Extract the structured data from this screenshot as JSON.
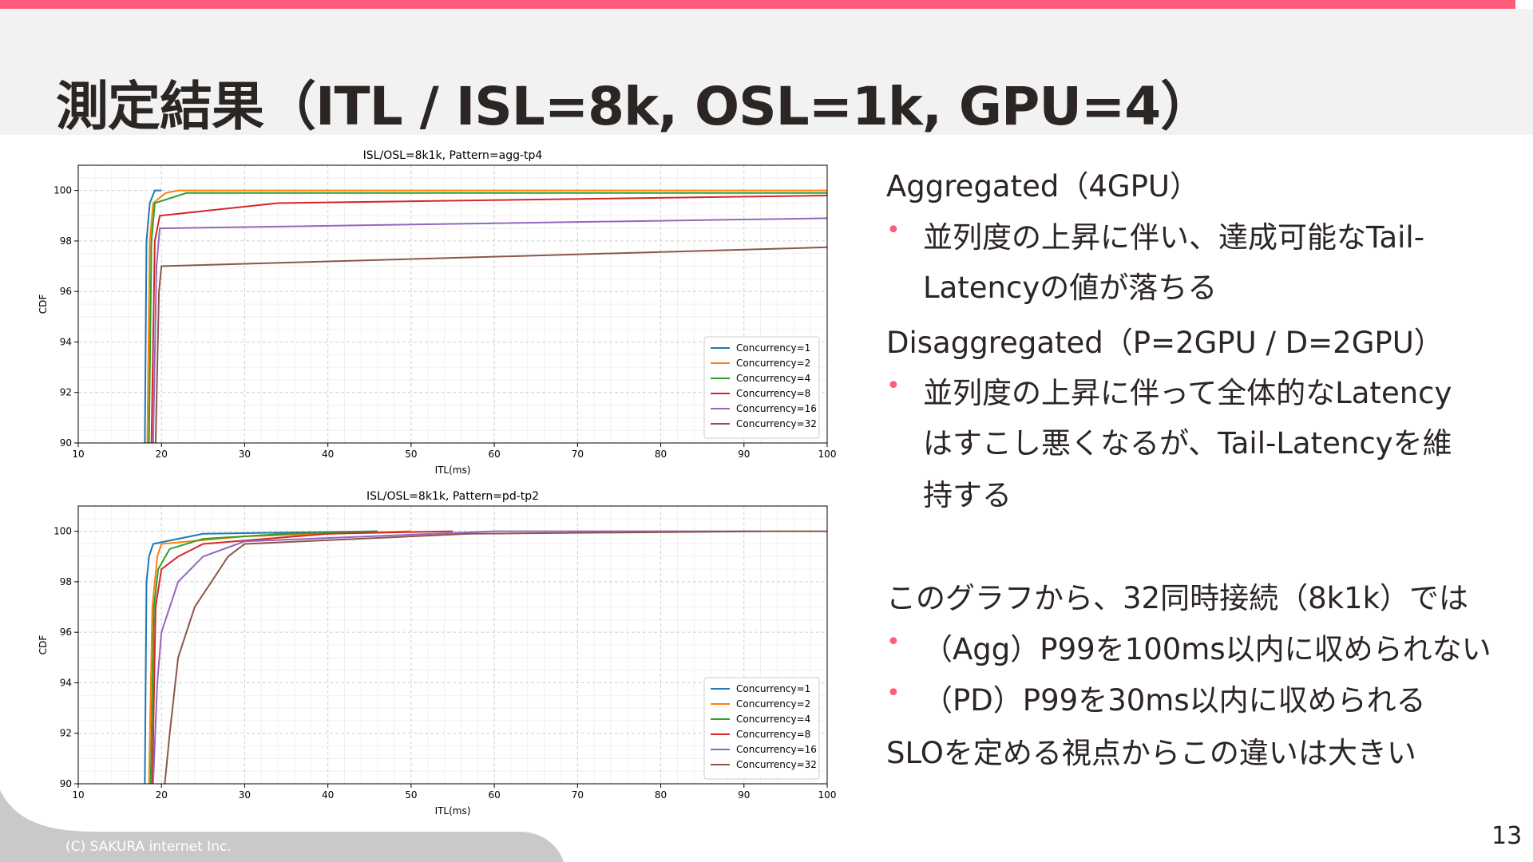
{
  "slide": {
    "title": "測定結果（ITL / ISL=8k, OSL=1k, GPU=4）",
    "page_number": "13",
    "footer": "(C) SAKURA internet Inc.",
    "accent_color": "#ff5b7a"
  },
  "text": {
    "heading_agg": "Aggregated（4GPU）",
    "bullet_agg_1a": "並列度の上昇に伴い、達成可能なTail-",
    "bullet_agg_1b": "Latencyの値が落ちる",
    "heading_disagg": "Disaggregated（P=2GPU / D=2GPU）",
    "bullet_disagg_1a": "並列度の上昇に伴って全体的なLatency",
    "bullet_disagg_1b": "はすこし悪くなるが、Tail-Latencyを維",
    "bullet_disagg_1c": "持する",
    "conclusion_intro": "このグラフから、32同時接続（8k1k）では",
    "bullet_concl_1": "（Agg）P99を100ms以内に収められない",
    "bullet_concl_2": "（PD）P99を30ms以内に収められる",
    "conclusion_final": "SLOを定める視点からこの違いは大きい",
    "bullet_glyph": "•"
  },
  "chart_data": [
    {
      "type": "line",
      "title": "ISL/OSL=8k1k, Pattern=agg-tp4",
      "xlabel": "ITL(ms)",
      "ylabel": "CDF",
      "xlim": [
        10,
        100
      ],
      "ylim": [
        90,
        101
      ],
      "xticks": [
        10,
        20,
        30,
        40,
        50,
        60,
        70,
        80,
        90,
        100
      ],
      "yticks": [
        90,
        92,
        94,
        96,
        98,
        100
      ],
      "grid": true,
      "legend_position": "lower-right",
      "series": [
        {
          "name": "Concurrency=1",
          "color": "#1f77b4",
          "points": [
            [
              18.0,
              90
            ],
            [
              18.2,
              98
            ],
            [
              18.6,
              99.5
            ],
            [
              19.2,
              100
            ],
            [
              20,
              100
            ]
          ]
        },
        {
          "name": "Concurrency=2",
          "color": "#ff7f0e",
          "points": [
            [
              18.3,
              90
            ],
            [
              18.6,
              98
            ],
            [
              19.0,
              99.5
            ],
            [
              20.5,
              99.9
            ],
            [
              22,
              100
            ],
            [
              100,
              100
            ]
          ]
        },
        {
          "name": "Concurrency=4",
          "color": "#2ca02c",
          "points": [
            [
              18.5,
              90
            ],
            [
              18.8,
              98
            ],
            [
              19.2,
              99.5
            ],
            [
              23,
              99.9
            ],
            [
              100,
              99.9
            ]
          ]
        },
        {
          "name": "Concurrency=8",
          "color": "#d62728",
          "points": [
            [
              18.8,
              90
            ],
            [
              19.2,
              98
            ],
            [
              19.8,
              99
            ],
            [
              34,
              99.5
            ],
            [
              100,
              99.8
            ]
          ]
        },
        {
          "name": "Concurrency=16",
          "color": "#9467bd",
          "points": [
            [
              19.0,
              90
            ],
            [
              19.4,
              97
            ],
            [
              19.8,
              98.5
            ],
            [
              100,
              98.9
            ]
          ]
        },
        {
          "name": "Concurrency=32",
          "color": "#8c564b",
          "points": [
            [
              19.3,
              90
            ],
            [
              19.7,
              96
            ],
            [
              20.0,
              97
            ],
            [
              100,
              97.75
            ]
          ]
        }
      ]
    },
    {
      "type": "line",
      "title": "ISL/OSL=8k1k, Pattern=pd-tp2",
      "xlabel": "ITL(ms)",
      "ylabel": "CDF",
      "xlim": [
        10,
        100
      ],
      "ylim": [
        90,
        101
      ],
      "xticks": [
        10,
        20,
        30,
        40,
        50,
        60,
        70,
        80,
        90,
        100
      ],
      "yticks": [
        90,
        92,
        94,
        96,
        98,
        100
      ],
      "grid": true,
      "legend_position": "lower-right",
      "series": [
        {
          "name": "Concurrency=1",
          "color": "#1f77b4",
          "points": [
            [
              18.0,
              90
            ],
            [
              18.2,
              98
            ],
            [
              18.5,
              99
            ],
            [
              19,
              99.5
            ],
            [
              25,
              99.9
            ],
            [
              46,
              100
            ]
          ]
        },
        {
          "name": "Concurrency=2",
          "color": "#ff7f0e",
          "points": [
            [
              18.5,
              90
            ],
            [
              18.9,
              97
            ],
            [
              19.5,
              99
            ],
            [
              20,
              99.5
            ],
            [
              30,
              99.8
            ],
            [
              50,
              100
            ]
          ]
        },
        {
          "name": "Concurrency=4",
          "color": "#2ca02c",
          "points": [
            [
              18.7,
              90
            ],
            [
              19.1,
              97
            ],
            [
              19.6,
              98.5
            ],
            [
              21,
              99.3
            ],
            [
              25,
              99.7
            ],
            [
              35,
              99.9
            ],
            [
              46,
              100
            ]
          ]
        },
        {
          "name": "Concurrency=8",
          "color": "#d62728",
          "points": [
            [
              18.9,
              90
            ],
            [
              19.3,
              97
            ],
            [
              20,
              98.5
            ],
            [
              22,
              99.0
            ],
            [
              25,
              99.5
            ],
            [
              40,
              99.9
            ],
            [
              55,
              100
            ]
          ]
        },
        {
          "name": "Concurrency=16",
          "color": "#9467bd",
          "points": [
            [
              19.0,
              90
            ],
            [
              19.5,
              94
            ],
            [
              20,
              96
            ],
            [
              22,
              98
            ],
            [
              25,
              99
            ],
            [
              30,
              99.6
            ],
            [
              60,
              100
            ],
            [
              92,
              100
            ]
          ]
        },
        {
          "name": "Concurrency=32",
          "color": "#8c564b",
          "points": [
            [
              20.4,
              90
            ],
            [
              21,
              92
            ],
            [
              22,
              95
            ],
            [
              24,
              97
            ],
            [
              26,
              98
            ],
            [
              28,
              99
            ],
            [
              30,
              99.5
            ],
            [
              57,
              99.9
            ],
            [
              93,
              100
            ],
            [
              100,
              100
            ]
          ]
        }
      ]
    }
  ]
}
